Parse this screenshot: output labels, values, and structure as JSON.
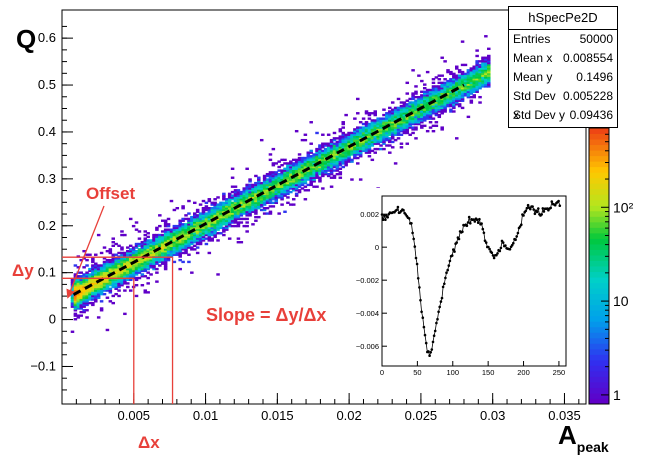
{
  "chart_data": [
    {
      "type": "heatmap",
      "title": "hSpecPe2D",
      "xlabel": "A",
      "xlabel_subscript": "peak",
      "ylabel": "Q",
      "xlim": [
        0,
        0.0365
      ],
      "ylim": [
        -0.18,
        0.66
      ],
      "x_ticks": [
        0.005,
        0.01,
        0.015,
        0.02,
        0.025,
        0.03,
        0.035
      ],
      "x_tick_labels": [
        "0.005",
        "0.01",
        "0.015",
        "0.02",
        "0.025",
        "0.03",
        "0.035"
      ],
      "y_ticks": [
        -0.1,
        0,
        0.1,
        0.2,
        0.3,
        0.4,
        0.5,
        0.6
      ],
      "y_tick_labels": [
        "−0.1",
        "0",
        "0.1",
        "0.2",
        "0.3",
        "0.4",
        "0.5",
        "0.6"
      ],
      "colorbar": {
        "scale": "log",
        "range": [
          0.8,
          700
        ],
        "ticks": [
          1,
          10,
          100
        ],
        "tick_labels": [
          "1",
          "10",
          "10²"
        ]
      },
      "fit_line": {
        "style": "dashed",
        "x0": 0.0,
        "y0": 0.04,
        "x1": 0.028,
        "y1": 0.5
      },
      "annotations": [
        {
          "text": "Offset",
          "color": "#e8403a"
        },
        {
          "text": "Δy",
          "color": "#e8403a"
        },
        {
          "text": "Δx",
          "color": "#e8403a"
        },
        {
          "text": "Slope = Δy/Δx",
          "color": "#e8403a"
        }
      ],
      "markers": {
        "x_lines": [
          0.005,
          0.0077
        ],
        "y_lines": [
          0.088,
          0.133
        ]
      },
      "stats": {
        "title": "hSpecPe2D",
        "rows": [
          {
            "label": "Entries",
            "value": "50000"
          },
          {
            "label": "Mean x",
            "value": "0.008554"
          },
          {
            "label": "Mean y",
            "value": "0.1496"
          },
          {
            "label": "Std Dev x",
            "value": "0.005228"
          },
          {
            "label": "Std Dev y",
            "value": "0.09436"
          }
        ]
      }
    },
    {
      "type": "line",
      "title": "",
      "xlabel": "",
      "ylabel": "",
      "xlim": [
        0,
        260
      ],
      "ylim": [
        -0.0072,
        0.0031
      ],
      "x_ticks": [
        0,
        50,
        100,
        150,
        200,
        250
      ],
      "x_tick_labels": [
        "0",
        "50",
        "100",
        "150",
        "200",
        "250"
      ],
      "y_ticks": [
        0.002,
        0,
        -0.002,
        -0.004,
        -0.006
      ],
      "y_tick_labels": [
        "0.002",
        "0",
        "−0.002",
        "−0.004",
        "−0.006"
      ],
      "keypoints": [
        [
          0,
          0.0018
        ],
        [
          10,
          0.0019
        ],
        [
          20,
          0.0022
        ],
        [
          30,
          0.0021
        ],
        [
          40,
          0.0016
        ],
        [
          48,
          -0.0004
        ],
        [
          55,
          -0.0035
        ],
        [
          62,
          -0.0058
        ],
        [
          66,
          -0.0065
        ],
        [
          70,
          -0.0062
        ],
        [
          78,
          -0.0045
        ],
        [
          88,
          -0.0022
        ],
        [
          98,
          -0.0006
        ],
        [
          108,
          0.0006
        ],
        [
          118,
          0.0014
        ],
        [
          128,
          0.0017
        ],
        [
          138,
          0.0016
        ],
        [
          148,
          0.0002
        ],
        [
          155,
          -0.0004
        ],
        [
          162,
          -0.0006
        ],
        [
          170,
          0.0002
        ],
        [
          180,
          -0.0002
        ],
        [
          188,
          0.0005
        ],
        [
          196,
          0.0014
        ],
        [
          206,
          0.0026
        ],
        [
          216,
          0.0023
        ],
        [
          226,
          0.0021
        ],
        [
          236,
          0.0024
        ],
        [
          246,
          0.0027
        ],
        [
          252,
          0.0026
        ]
      ],
      "keypoints_note": "approximate"
    }
  ]
}
